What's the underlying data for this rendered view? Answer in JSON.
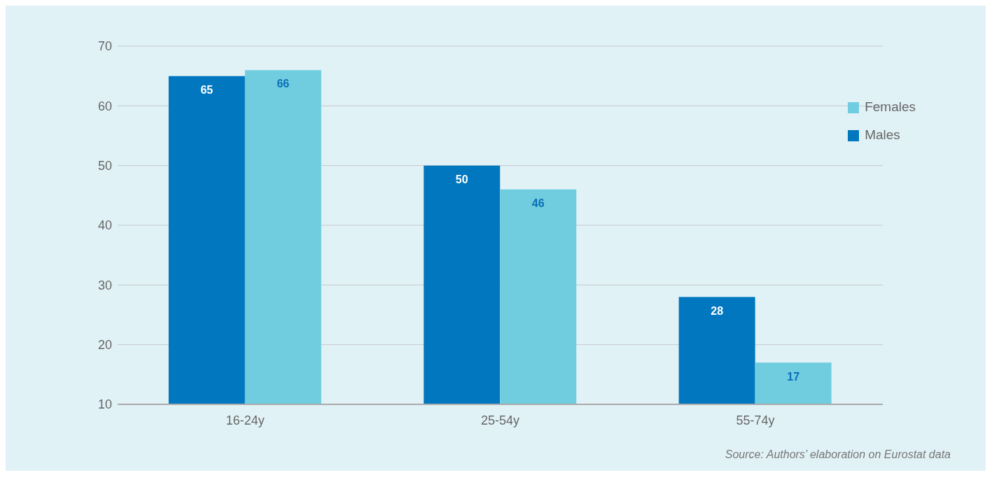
{
  "chart_data": {
    "type": "bar",
    "categories": [
      "16-24y",
      "25-54y",
      "55-74y"
    ],
    "series": [
      {
        "name": "Males",
        "color": "#0077be",
        "values": [
          65,
          50,
          28
        ]
      },
      {
        "name": "Females",
        "color": "#70cde0",
        "values": [
          66,
          46,
          17
        ]
      }
    ],
    "ylim": [
      10,
      70
    ],
    "yticks": [
      10,
      20,
      30,
      40,
      50,
      60,
      70
    ],
    "grid": "y",
    "legend": "right",
    "data_labels": true,
    "annotations": [
      "Source: Authors’ elaboration on Eurostat data"
    ]
  }
}
